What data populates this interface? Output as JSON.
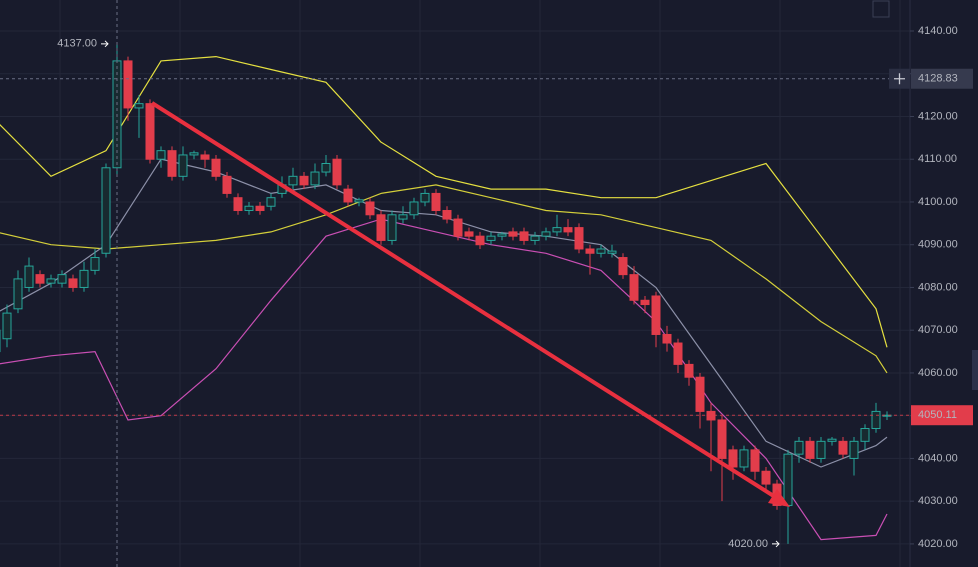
{
  "chart_data": {
    "type": "candlestick",
    "ylim": [
      4014.6,
      4147.25
    ],
    "yticks": [
      {
        "value": 4140,
        "label": "4140.00"
      },
      {
        "value": 4130,
        "label": "4130.00"
      },
      {
        "value": 4120,
        "label": "4120.00"
      },
      {
        "value": 4110,
        "label": "4110.00"
      },
      {
        "value": 4100,
        "label": "4100.00"
      },
      {
        "value": 4090,
        "label": "4090.00"
      },
      {
        "value": 4080,
        "label": "4080.00"
      },
      {
        "value": 4070,
        "label": "4070.00"
      },
      {
        "value": 4060,
        "label": "4060.00"
      },
      {
        "value": 4050,
        "label": "4050.00"
      },
      {
        "value": 4040,
        "label": "4040.00"
      },
      {
        "value": 4030,
        "label": "4030.00"
      },
      {
        "value": 4020,
        "label": "4020.00"
      }
    ],
    "grid": true,
    "up_color": "#26a69a",
    "down_color": "#e23d4b",
    "candles": {
      "open": [
        4065,
        4068,
        4075,
        4080,
        4083,
        4081,
        4081,
        4082,
        4080,
        4084,
        4088,
        4108,
        4133,
        4122,
        4123,
        4110,
        4112,
        4106,
        4111,
        4111,
        4110,
        4106,
        4101,
        4098,
        4099,
        4099,
        4102,
        4104,
        4106,
        4104,
        4107,
        4110,
        4103,
        4100,
        4100,
        4097,
        4091,
        4096,
        4097,
        4100,
        4102,
        4098,
        4096,
        4093,
        4092,
        4091,
        4092,
        4093,
        4093,
        4091,
        4092,
        4093,
        4094,
        4094,
        4089,
        4088,
        4088,
        4087,
        4083,
        4077,
        4078,
        4069,
        4067,
        4062,
        4059,
        4051,
        4049,
        4042,
        4038,
        4042,
        4037,
        4034,
        4029,
        4041,
        4044,
        4040,
        4044,
        4044,
        4040,
        4044,
        4047,
        4050
      ],
      "high": [
        4072,
        4076,
        4084,
        4087,
        4084,
        4083,
        4084,
        4083,
        4086,
        4089,
        4109,
        4137,
        4134,
        4125,
        4124,
        4113,
        4113,
        4113,
        4112,
        4112,
        4111,
        4107,
        4102,
        4100,
        4100,
        4102,
        4106,
        4108,
        4107,
        4109,
        4111,
        4111,
        4104,
        4101,
        4101,
        4098,
        4098,
        4099,
        4101,
        4103,
        4103,
        4099,
        4097,
        4094,
        4093,
        4093,
        4093,
        4094,
        4094,
        4093,
        4094,
        4097,
        4096,
        4095,
        4090,
        4090,
        4090,
        4088,
        4085,
        4078,
        4079,
        4071,
        4068,
        4063,
        4060,
        4053,
        4050,
        4043,
        4043,
        4043,
        4038,
        4035,
        4042,
        4045,
        4045,
        4045,
        4045,
        4045,
        4045,
        4048,
        4053,
        4051
      ],
      "low": [
        4062,
        4066,
        4074,
        4079,
        4080,
        4080,
        4080,
        4079,
        4079,
        4083,
        4087,
        4106,
        4119,
        4115,
        4109,
        4108,
        4105,
        4105,
        4110,
        4108,
        4105,
        4101,
        4097,
        4097,
        4097,
        4098,
        4101,
        4103,
        4103,
        4103,
        4106,
        4103,
        4099,
        4099,
        4096,
        4090,
        4090,
        4095,
        4096,
        4099,
        4097,
        4095,
        4091,
        4091,
        4089,
        4090,
        4091,
        4091,
        4090,
        4090,
        4091,
        4092,
        4092,
        4088,
        4083,
        4087,
        4087,
        4082,
        4076,
        4074,
        4066,
        4065,
        4060,
        4057,
        4047,
        4037,
        4030,
        4035,
        4037,
        4035,
        4032,
        4028,
        4020,
        4039,
        4039,
        4039,
        4043,
        4040,
        4036,
        4042,
        4046,
        4049
      ],
      "close": [
        4070,
        4074,
        4082,
        4085,
        4081,
        4082,
        4083,
        4080,
        4084,
        4087,
        4108,
        4133,
        4122,
        4123,
        4110,
        4112,
        4106,
        4111,
        4111.5,
        4110,
        4106,
        4102,
        4098,
        4099,
        4098,
        4101,
        4104,
        4106,
        4104,
        4107,
        4109,
        4104,
        4100,
        4100.5,
        4097,
        4091,
        4097,
        4097,
        4100,
        4102,
        4098,
        4096,
        4092,
        4092,
        4090,
        4092,
        4092.5,
        4092,
        4091,
        4092,
        4093,
        4094,
        4093,
        4089,
        4088,
        4089,
        4088.5,
        4083,
        4077,
        4076,
        4069,
        4067,
        4062,
        4059,
        4051,
        4049,
        4040,
        4038,
        4042,
        4037,
        4034,
        4029,
        4041,
        4044,
        4040,
        4044,
        4044.5,
        4041,
        4044,
        4047,
        4051,
        4050.11
      ]
    },
    "overlays": [
      {
        "color": "#e5e040",
        "x": [
          0,
          5,
          10,
          15,
          20,
          25,
          30,
          35,
          40,
          45,
          50,
          55,
          60,
          65,
          70,
          75,
          80,
          81
        ],
        "values": [
          4119,
          4106,
          4112,
          4133,
          4134,
          4131,
          4128,
          4114,
          4106,
          4103,
          4103,
          4101,
          4101,
          4105,
          4109,
          4092,
          4075,
          4066
        ]
      },
      {
        "color": "#d4cf3a",
        "x": [
          0,
          5,
          10,
          15,
          20,
          25,
          30,
          35,
          40,
          45,
          50,
          55,
          60,
          65,
          70,
          75,
          80,
          81
        ],
        "values": [
          4093,
          4090,
          4089,
          4090,
          4091,
          4093,
          4097,
          4102,
          4104,
          4101,
          4098,
          4097,
          4094,
          4091,
          4082,
          4072,
          4064,
          4060
        ]
      },
      {
        "color": "#c94fb4",
        "x": [
          0,
          5,
          9,
          12,
          15,
          20,
          25,
          30,
          35,
          40,
          45,
          50,
          55,
          60,
          65,
          70,
          75,
          80,
          81
        ],
        "values": [
          4062,
          4064,
          4065,
          4049,
          4050,
          4061,
          4077,
          4092,
          4096,
          4093,
          4090,
          4088,
          4084,
          4072,
          4053,
          4040,
          4021,
          4022,
          4027
        ]
      },
      {
        "color": "#8c90a8",
        "x": [
          0,
          5,
          10,
          15,
          20,
          25,
          30,
          35,
          40,
          45,
          50,
          55,
          60,
          65,
          70,
          75,
          80,
          81
        ],
        "values": [
          4074,
          4081,
          4090,
          4110,
          4107,
          4102,
          4104,
          4098,
          4097,
          4093,
          4092,
          4090,
          4080,
          4062,
          4044,
          4038,
          4043,
          4045
        ]
      }
    ],
    "high_marker": {
      "index": 11,
      "value": 4137,
      "label": "4137.00"
    },
    "low_marker": {
      "index": 72,
      "value": 4020,
      "label": "4020.00"
    },
    "crosshair": {
      "index": 11,
      "value": 4128.83
    },
    "last_price": 4050.11
  }
}
